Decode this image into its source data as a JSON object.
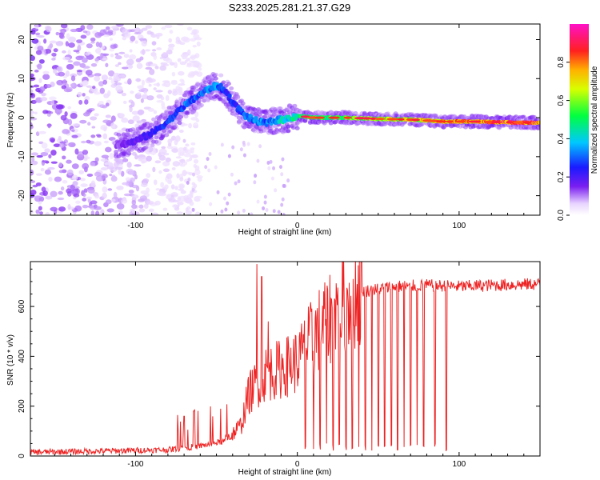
{
  "title": "S233.2025.281.21.37.G29",
  "colors": {
    "snr_line": "#ee2222",
    "axis": "#000000"
  },
  "chart_data": [
    {
      "type": "heatmap",
      "name": "spectrogram",
      "xlabel": "Height of straight line (km)",
      "ylabel": "Frequency (Hz)",
      "xlim": [
        -165,
        150
      ],
      "ylim": [
        -25,
        24
      ],
      "xticks": [
        -100,
        0,
        100
      ],
      "yticks": [
        -20,
        -10,
        0,
        10,
        20
      ],
      "colorbar": {
        "label": "Normalized spectral amplitude",
        "range": [
          0,
          1
        ],
        "ticks": [
          "0.0",
          "0.2",
          "0.4",
          "0.6",
          "0.8"
        ],
        "colormap": "rainbow: white-purple-blue-cyan-green-yellow-red-magenta"
      },
      "ridge": {
        "description": "dominant frequency ridge",
        "x": [
          -110,
          -100,
          -90,
          -80,
          -70,
          -60,
          -52,
          -48,
          -44,
          -40,
          -36,
          -32,
          -28,
          -24,
          -20,
          -16,
          -12,
          -8,
          -4,
          0,
          10,
          30,
          50,
          70,
          90,
          110,
          130,
          145
        ],
        "y": [
          -7,
          -6,
          -4,
          -1,
          3,
          6,
          8,
          8,
          6.5,
          4,
          2,
          0.5,
          -0.5,
          -1,
          -1.5,
          -1,
          -0.5,
          -0.5,
          0,
          0.5,
          0,
          0,
          -0.3,
          -0.5,
          -1,
          -1,
          -1.2,
          -1.3
        ],
        "amplitude": [
          0.15,
          0.2,
          0.25,
          0.3,
          0.35,
          0.35,
          0.4,
          0.35,
          0.3,
          0.3,
          0.3,
          0.35,
          0.35,
          0.4,
          0.35,
          0.4,
          0.45,
          0.5,
          0.5,
          0.55,
          0.6,
          0.65,
          0.7,
          0.75,
          0.85,
          0.9,
          0.95,
          0.95
        ]
      },
      "noise_region": "scattered low-amplitude purple speckle for x < -60 km"
    },
    {
      "type": "line",
      "name": "snr",
      "xlabel": "Height of straight line (km)",
      "ylabel": "SNR (10 * v/v)",
      "xlim": [
        -165,
        150
      ],
      "ylim": [
        0,
        780
      ],
      "xticks": [
        -100,
        0,
        100
      ],
      "yticks": [
        0,
        200,
        400,
        600
      ],
      "series": [
        {
          "name": "SNR",
          "envelope_x": [
            -165,
            -120,
            -80,
            -60,
            -45,
            -35,
            -30,
            -20,
            -10,
            0,
            10,
            20,
            30,
            40,
            50,
            60,
            80,
            100,
            120,
            150
          ],
          "envelope_y": [
            15,
            20,
            25,
            40,
            60,
            120,
            250,
            330,
            350,
            380,
            480,
            560,
            630,
            660,
            670,
            680,
            685,
            680,
            685,
            690
          ],
          "spikes": [
            {
              "x": -25,
              "y": 770
            },
            {
              "x": -22,
              "y": 720
            },
            {
              "x": -18,
              "y": 540
            },
            {
              "x": -64,
              "y": 180
            },
            {
              "x": -70,
              "y": 160
            }
          ],
          "dropouts_x": [
            5,
            10,
            14,
            18,
            22,
            26,
            30,
            34,
            38,
            42,
            46,
            50,
            54,
            58,
            62,
            66,
            70,
            74,
            78,
            85,
            92
          ]
        }
      ]
    }
  ]
}
